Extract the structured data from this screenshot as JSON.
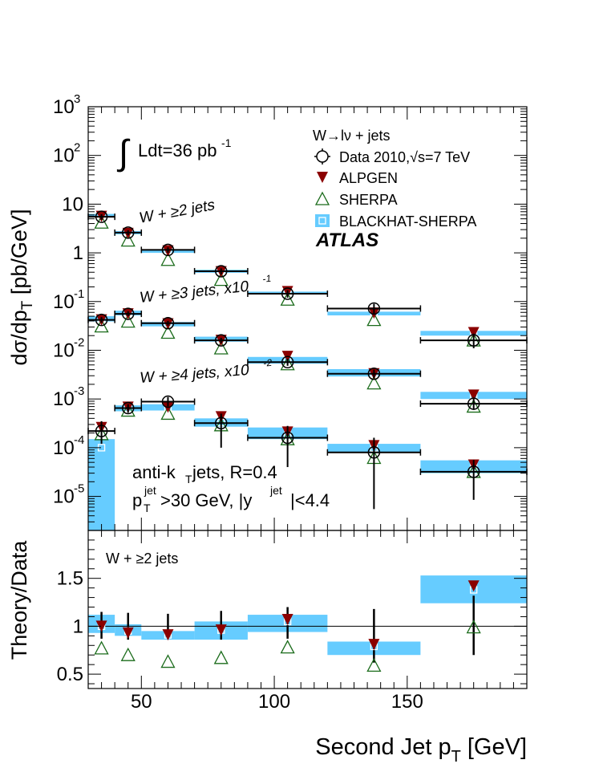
{
  "chart_data": [
    {
      "type": "scatter",
      "panel": "main",
      "ylabel": "dσ/dp_T [pb/GeV]",
      "yscale": "log",
      "ylim": [
        2e-06,
        1000
      ],
      "xlim": [
        30,
        195
      ],
      "legend_placement": "top-right",
      "legend": {
        "title": "W→lν + jets",
        "entries": [
          "Data 2010,√s=7 TeV",
          "ALPGEN",
          "SHERPA",
          "BLACKHAT-SHERPA"
        ]
      },
      "texts": {
        "lumi": "∫Ldt=36 pb",
        "lumi_exp": "-1",
        "atlas": "ATLAS",
        "jets_algo": "anti-k",
        "jets_algo_sub": "T",
        "jets_algo_rest": " jets, R=0.4",
        "cut_p": "p",
        "cut_p_sub": "T",
        "cut_p_sup": "jet",
        "cut_mid": ">30 GeV, |y",
        "cut_y_sup": "jet",
        "cut_end": "|<4.4"
      },
      "series": [
        {
          "name": "W + ≥2 jets",
          "label_main": "W + ≥2 jets",
          "label_scale": "",
          "bins": [
            [
              30,
              40
            ],
            [
              40,
              50
            ],
            [
              50,
              70
            ],
            [
              70,
              90
            ],
            [
              90,
              120
            ],
            [
              120,
              155
            ],
            [
              155,
              195
            ]
          ],
          "x": [
            35,
            45,
            60,
            80,
            105,
            137.5,
            175
          ],
          "data": [
            5.5,
            2.6,
            1.15,
            0.42,
            0.145,
            0.072,
            0.016
          ],
          "data_err": [
            [
              4.8,
              6.2
            ],
            [
              2.3,
              2.9
            ],
            [
              1.0,
              1.3
            ],
            [
              0.36,
              0.48
            ],
            [
              0.12,
              0.17
            ],
            [
              0.055,
              0.09
            ],
            [
              0.011,
              0.022
            ]
          ],
          "alpgen": [
            5.6,
            2.5,
            1.1,
            0.41,
            0.16,
            0.058,
            0.023
          ],
          "sherpa": [
            4.2,
            1.8,
            0.72,
            0.28,
            0.11,
            0.042,
            0.016
          ],
          "blackhat": [
            5.9,
            2.6,
            1.08,
            0.42,
            0.15,
            0.057,
            0.022
          ],
          "blackhat_band": [
            [
              5.5,
              6.3
            ],
            [
              2.4,
              2.8
            ],
            [
              1.0,
              1.17
            ],
            [
              0.39,
              0.45
            ],
            [
              0.14,
              0.16
            ],
            [
              0.052,
              0.062
            ],
            [
              0.02,
              0.025
            ]
          ]
        },
        {
          "name": "W + ≥3 jets, x10-1",
          "label_main": "W + ≥3 jets, x10",
          "label_scale": "-1",
          "bins": [
            [
              30,
              40
            ],
            [
              40,
              50
            ],
            [
              50,
              70
            ],
            [
              70,
              90
            ],
            [
              90,
              120
            ],
            [
              120,
              155
            ],
            [
              155,
              195
            ]
          ],
          "x": [
            35,
            45,
            60,
            80,
            105,
            137.5,
            175
          ],
          "data": [
            0.042,
            0.056,
            0.036,
            0.016,
            0.0057,
            0.0033,
            0.0008
          ],
          "data_err": [
            [
              0.037,
              0.048
            ],
            [
              0.05,
              0.063
            ],
            [
              0.032,
              0.04
            ],
            [
              0.014,
              0.018
            ],
            [
              0.0048,
              0.0067
            ],
            [
              0.0027,
              0.004
            ],
            [
              0.0006,
              0.001
            ]
          ],
          "alpgen": [
            0.042,
            0.056,
            0.035,
            0.016,
            0.0075,
            0.0033,
            0.0012
          ],
          "sherpa": [
            0.031,
            0.039,
            0.023,
            0.011,
            0.0052,
            0.0021,
            0.0007
          ],
          "blackhat": [
            0.044,
            0.058,
            0.034,
            0.017,
            0.0062,
            0.0034,
            0.0012
          ],
          "blackhat_band": [
            [
              0.039,
              0.05
            ],
            [
              0.052,
              0.065
            ],
            [
              0.031,
              0.038
            ],
            [
              0.015,
              0.019
            ],
            [
              0.0053,
              0.0073
            ],
            [
              0.0029,
              0.0041
            ],
            [
              0.001,
              0.0014
            ]
          ]
        },
        {
          "name": "W + ≥4 jets, x10-2",
          "label_main": "W + ≥4 jets, x10",
          "label_scale": "-2",
          "bins": [
            [
              30,
              40
            ],
            [
              40,
              50
            ],
            [
              50,
              70
            ],
            [
              70,
              90
            ],
            [
              90,
              120
            ],
            [
              120,
              155
            ],
            [
              155,
              195
            ]
          ],
          "x": [
            35,
            45,
            60,
            80,
            105,
            137.5,
            175
          ],
          "data": [
            0.00022,
            0.00065,
            0.00088,
            0.00032,
            0.00016,
            8e-05,
            3.2e-05
          ],
          "data_err": [
            [
              0.00012,
              0.00035
            ],
            [
              0.00052,
              0.00078
            ],
            [
              0.0007,
              0.0011
            ],
            [
              0.0001,
              0.0005
            ],
            [
              4e-05,
              0.00028
            ],
            [
              5.5e-06,
              0.00016
            ],
            [
              8.5e-06,
              5.6e-05
            ]
          ],
          "alpgen": [
            0.00026,
            0.00068,
            0.00068,
            0.00043,
            0.00021,
            0.00011,
            4.4e-05
          ],
          "sherpa": [
            0.00019,
            0.00058,
            0.0005,
            0.00029,
            0.00015,
            6.2e-05,
            3.2e-05
          ],
          "blackhat": [
            0.0001,
            0.00065,
            0.00068,
            0.00033,
            0.00018,
            9.8e-05,
            4e-05
          ],
          "blackhat_band": [
            [
              2e-06,
              0.00015
            ],
            [
              0.00056,
              0.00074
            ],
            [
              0.00058,
              0.00078
            ],
            [
              0.00027,
              0.0004
            ],
            [
              0.00015,
              0.00026
            ],
            [
              7.8e-05,
              0.00012
            ],
            [
              3e-05,
              5.5e-05
            ]
          ]
        }
      ],
      "yticks": [
        "10^-5",
        "10^-4",
        "10^-3",
        "10^-2",
        "10^-1",
        "1",
        "10",
        "10^2",
        "10^3"
      ]
    },
    {
      "type": "scatter",
      "panel": "ratio",
      "xlabel": "Second Jet p_T [GeV]",
      "ylabel": "Theory/Data",
      "ylim": [
        0.35,
        2.0
      ],
      "xlim": [
        30,
        195
      ],
      "annotation": "W + ≥2 jets",
      "xticks": [
        50,
        100,
        150
      ],
      "yticks": [
        0.5,
        1,
        1.5
      ],
      "bins": [
        [
          30,
          40
        ],
        [
          40,
          50
        ],
        [
          50,
          70
        ],
        [
          70,
          90
        ],
        [
          90,
          120
        ],
        [
          120,
          155
        ],
        [
          155,
          195
        ]
      ],
      "x": [
        35,
        45,
        60,
        80,
        105,
        137.5,
        175
      ],
      "alpgen": [
        1.0,
        0.93,
        0.91,
        0.96,
        1.07,
        0.81,
        1.42
      ],
      "sherpa": [
        0.77,
        0.7,
        0.63,
        0.67,
        0.78,
        0.59,
        0.99
      ],
      "blackhat": [
        1.0,
        0.95,
        0.91,
        0.96,
        1.05,
        0.79,
        1.38
      ],
      "blackhat_band": [
        [
          0.93,
          1.12
        ],
        [
          0.9,
          1.02
        ],
        [
          0.86,
          0.95
        ],
        [
          0.86,
          1.05
        ],
        [
          0.94,
          1.12
        ],
        [
          0.7,
          0.84
        ],
        [
          1.24,
          1.53
        ]
      ],
      "data_err": [
        [
          0.87,
          1.15
        ],
        [
          0.86,
          1.14
        ],
        [
          0.87,
          1.13
        ],
        [
          0.86,
          1.16
        ],
        [
          0.87,
          1.2
        ],
        [
          0.62,
          1.18
        ],
        [
          0.7,
          1.32
        ]
      ]
    }
  ],
  "colors": {
    "band": "#66ccff",
    "alpgen": "#8b0000",
    "sherpa": "#1a6b1a",
    "data": "#000000"
  }
}
